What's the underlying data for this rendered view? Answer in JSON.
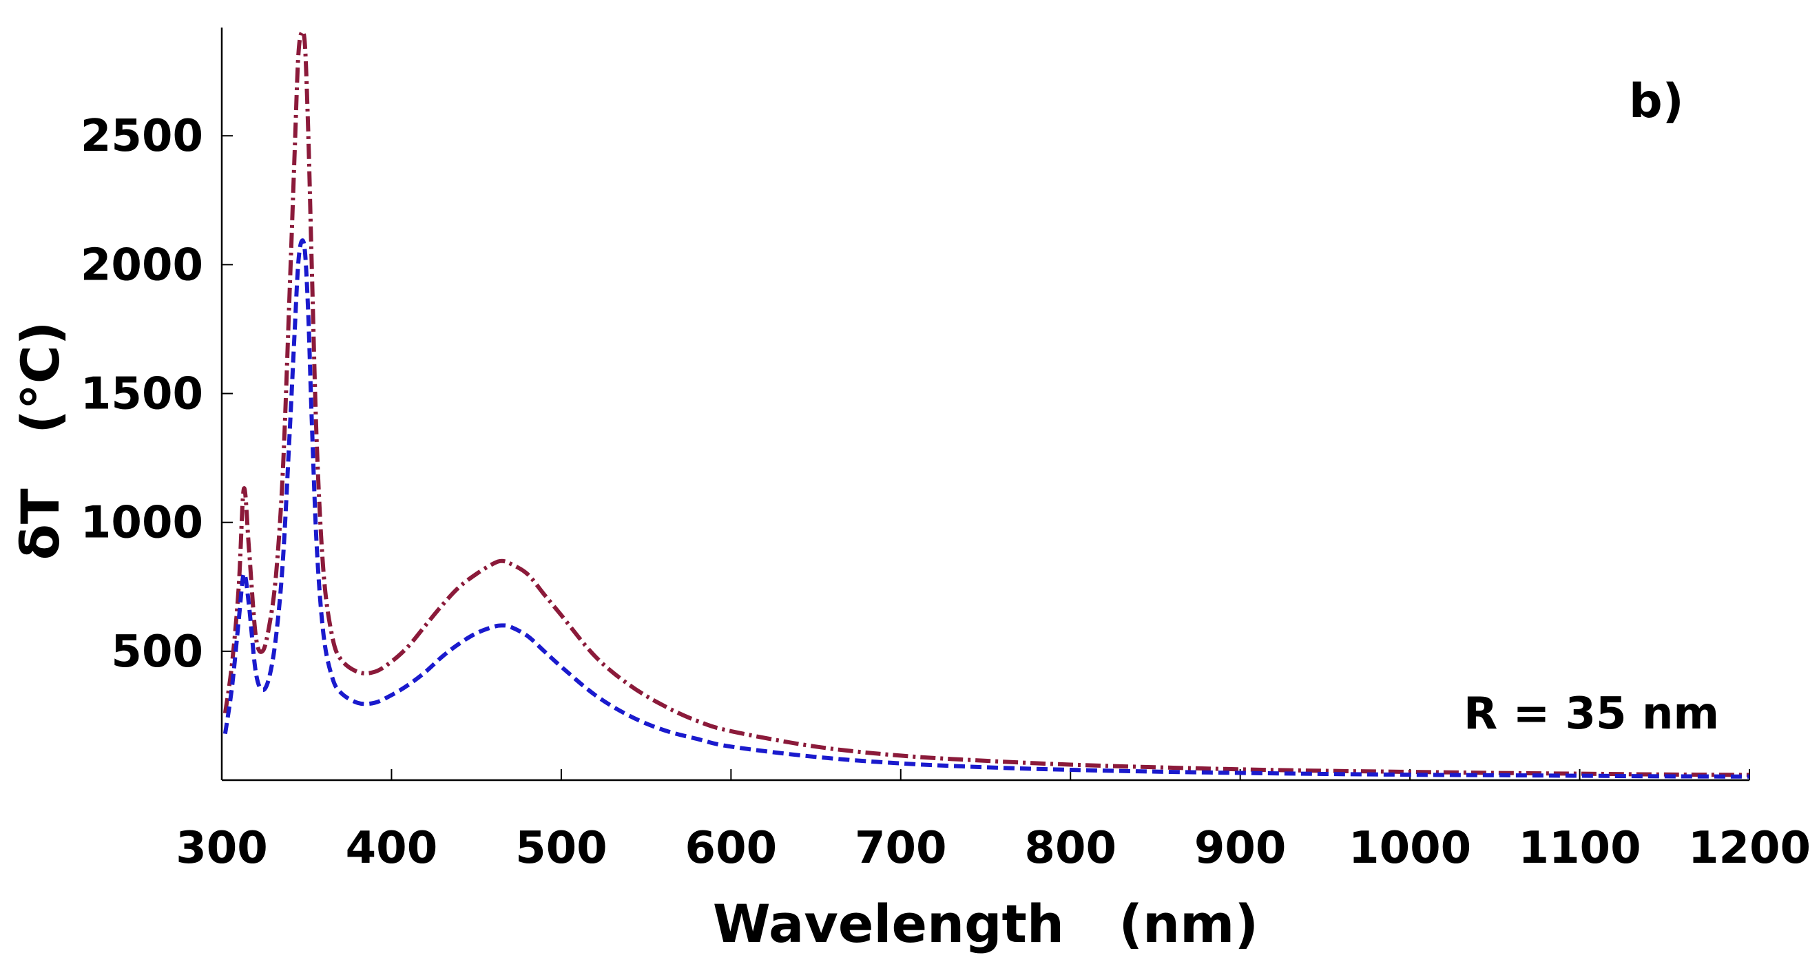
{
  "chart_data": {
    "type": "line",
    "panel_label": "b)",
    "annotation": "R = 35 nm",
    "xlabel": "Wavelength   (nm)",
    "ylabel": "δT   (°C)",
    "xlim": [
      300,
      1200
    ],
    "ylim": [
      0,
      2920
    ],
    "x_ticks": [
      300,
      400,
      500,
      600,
      700,
      800,
      900,
      1000,
      1100,
      1200
    ],
    "y_ticks": [
      500,
      1000,
      1500,
      2000,
      2500
    ],
    "grid": false,
    "legend": "none",
    "series": [
      {
        "name": "upper curve (dash-dot)",
        "color": "#8b1a3a",
        "style": "dashdot",
        "x": [
          302,
          306,
          310,
          313,
          316,
          320,
          324,
          328,
          332,
          336,
          340,
          343,
          345,
          347,
          349,
          351,
          353,
          356,
          360,
          365,
          370,
          380,
          390,
          400,
          410,
          420,
          430,
          440,
          450,
          460,
          465,
          470,
          480,
          490,
          500,
          520,
          540,
          560,
          580,
          600,
          650,
          700,
          750,
          800,
          850,
          900,
          950,
          1000,
          1050,
          1100,
          1150,
          1200
        ],
        "y": [
          260,
          450,
          750,
          1130,
          900,
          560,
          500,
          600,
          800,
          1200,
          1900,
          2450,
          2800,
          2900,
          2850,
          2500,
          2000,
          1300,
          800,
          560,
          470,
          420,
          420,
          460,
          520,
          600,
          680,
          750,
          800,
          840,
          850,
          840,
          800,
          720,
          640,
          480,
          370,
          290,
          230,
          190,
          130,
          95,
          75,
          60,
          50,
          42,
          36,
          32,
          28,
          25,
          22,
          20
        ]
      },
      {
        "name": "lower curve (dashed)",
        "color": "#1a1acd",
        "style": "dashed",
        "x": [
          302,
          306,
          310,
          313,
          316,
          320,
          324,
          328,
          332,
          336,
          340,
          343,
          345,
          347,
          349,
          351,
          353,
          356,
          360,
          365,
          370,
          380,
          390,
          400,
          410,
          420,
          430,
          440,
          450,
          460,
          465,
          470,
          480,
          490,
          500,
          520,
          540,
          560,
          580,
          600,
          650,
          700,
          750,
          800,
          850,
          900,
          950,
          1000,
          1050,
          1100,
          1150,
          1200
        ],
        "y": [
          180,
          360,
          620,
          800,
          680,
          420,
          350,
          400,
          560,
          850,
          1350,
          1750,
          2000,
          2090,
          2050,
          1800,
          1400,
          900,
          560,
          400,
          340,
          300,
          300,
          330,
          370,
          420,
          480,
          530,
          570,
          595,
          600,
          595,
          560,
          500,
          440,
          330,
          250,
          195,
          160,
          130,
          90,
          65,
          50,
          40,
          33,
          28,
          24,
          21,
          19,
          17,
          15,
          14
        ]
      }
    ]
  }
}
